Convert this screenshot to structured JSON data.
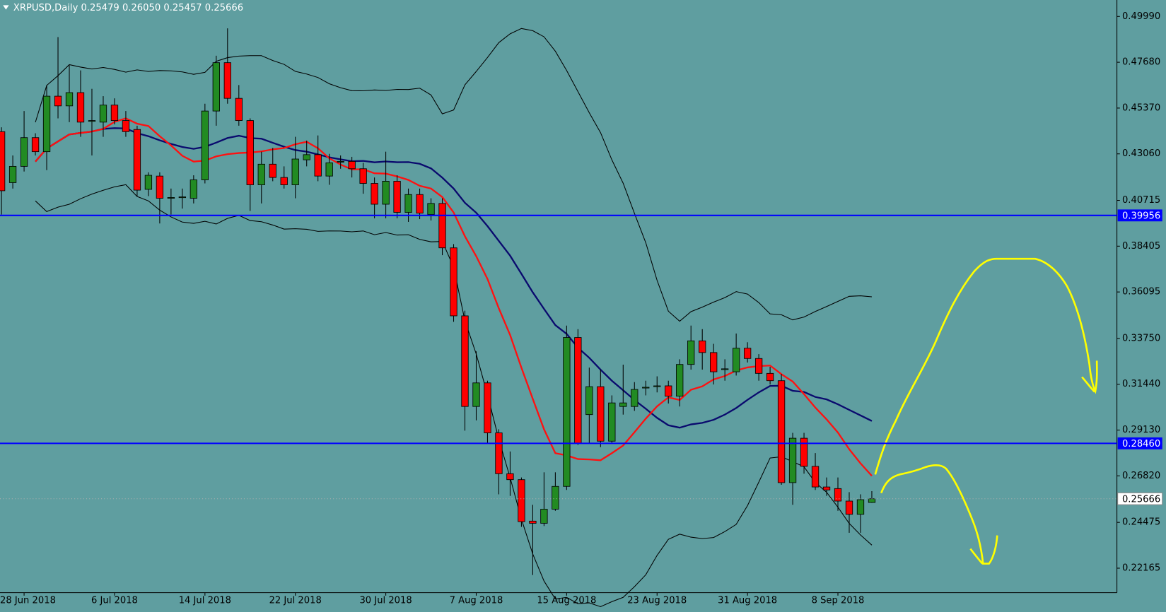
{
  "chart_data": {
    "type": "candlestick",
    "title": "XRPUSD,Daily  0.25479 0.26050 0.25457 0.25666",
    "categories": [
      null,
      null,
      "28 Jun 2018",
      null,
      null,
      null,
      null,
      null,
      null,
      null,
      "6 Jul 2018",
      null,
      null,
      null,
      null,
      null,
      null,
      null,
      "14 Jul 2018",
      null,
      null,
      null,
      null,
      null,
      null,
      null,
      "22 Jul 2018",
      null,
      null,
      null,
      null,
      null,
      null,
      null,
      "30 Jul 2018",
      null,
      null,
      null,
      null,
      null,
      null,
      null,
      "7 Aug 2018",
      null,
      null,
      null,
      null,
      null,
      null,
      null,
      "15 Aug 2018",
      null,
      null,
      null,
      null,
      null,
      null,
      null,
      "23 Aug 2018",
      null,
      null,
      null,
      null,
      null,
      null,
      null,
      "31 Aug 2018",
      null,
      null,
      null,
      null,
      null,
      null,
      null,
      "8 Sep 2018",
      null,
      null,
      null
    ],
    "open": [
      0.4418,
      0.4161,
      0.4243,
      0.4388,
      0.4317,
      0.4597,
      0.4548,
      0.4615,
      0.447,
      0.4466,
      0.4552,
      0.4474,
      0.4429,
      0.4127,
      0.4194,
      0.4082,
      0.4086,
      0.4082,
      0.4175,
      0.4522,
      0.4766,
      0.4586,
      0.4474,
      0.415,
      0.4254,
      0.4187,
      0.415,
      0.4276,
      0.4302,
      0.4194,
      0.4265,
      0.4268,
      0.4231,
      0.4157,
      0.4052,
      0.4168,
      0.4011,
      0.4101,
      0.4,
      0.4056,
      0.3832,
      0.3489,
      0.3032,
      0.3151,
      0.2899,
      0.2693,
      0.2663,
      0.2454,
      0.2443,
      0.2514,
      0.2629,
      0.338,
      0.2991,
      0.3132,
      0.2857,
      0.3032,
      0.3032,
      0.3125,
      0.3132,
      0.3136,
      0.3084,
      0.3244,
      0.3363,
      0.3304,
      0.3218,
      0.3207,
      0.3326,
      0.3274,
      0.3199,
      0.3162,
      0.2648,
      0.2872,
      0.273,
      0.2626,
      0.2618,
      0.2555,
      0.2488,
      0.25479
    ],
    "high": [
      0.444,
      0.4298,
      0.4522,
      0.441,
      0.4653,
      0.4895,
      0.4753,
      0.4727,
      0.4634,
      0.4597,
      0.4586,
      0.4522,
      0.4448,
      0.4213,
      0.4213,
      0.4131,
      0.4131,
      0.4198,
      0.4559,
      0.4801,
      0.4939,
      0.4653,
      0.4485,
      0.4317,
      0.4336,
      0.4243,
      0.4392,
      0.4373,
      0.4399,
      0.4306,
      0.4298,
      0.4291,
      0.4261,
      0.4187,
      0.4317,
      0.4198,
      0.4131,
      0.4131,
      0.4082,
      0.4082,
      0.3851,
      0.3515,
      0.331,
      0.3162,
      0.2917,
      0.2805,
      0.2674,
      0.2536,
      0.27,
      0.27,
      0.344,
      0.3422,
      0.3228,
      0.3218,
      0.3088,
      0.3243,
      0.3155,
      0.3162,
      0.3184,
      0.3162,
      0.327,
      0.344,
      0.3422,
      0.3348,
      0.327,
      0.34,
      0.3356,
      0.3296,
      0.3232,
      0.3196,
      0.2899,
      0.2899,
      0.2797,
      0.2674,
      0.2674,
      0.26,
      0.2589,
      0.2605
    ],
    "low": [
      0.4,
      0.4131,
      0.4217,
      0.4298,
      0.4224,
      0.4485,
      0.4466,
      0.4392,
      0.4298,
      0.4392,
      0.4455,
      0.4392,
      0.4093,
      0.4093,
      0.3955,
      0.4,
      0.403,
      0.4056,
      0.4157,
      0.4448,
      0.4559,
      0.4448,
      0.4018,
      0.4056,
      0.4168,
      0.4131,
      0.4082,
      0.4243,
      0.4168,
      0.415,
      0.4231,
      0.4187,
      0.4105,
      0.3981,
      0.3981,
      0.3981,
      0.3963,
      0.3977,
      0.397,
      0.3795,
      0.3459,
      0.291,
      0.2962,
      0.2846,
      0.2589,
      0.2581,
      0.2425,
      0.2182,
      0.2429,
      0.2506,
      0.2611,
      0.2838,
      0.2846,
      0.2827,
      0.2846,
      0.2991,
      0.301,
      0.3088,
      0.3103,
      0.3047,
      0.3032,
      0.3218,
      0.3218,
      0.3143,
      0.3162,
      0.3188,
      0.3254,
      0.3162,
      0.3143,
      0.2637,
      0.2536,
      0.2693,
      0.2611,
      0.2581,
      0.2506,
      0.2395,
      0.2395,
      0.25457
    ],
    "close": [
      0.412,
      0.4243,
      0.4388,
      0.4317,
      0.4597,
      0.4548,
      0.4615,
      0.4466,
      0.4474,
      0.4552,
      0.4474,
      0.4418,
      0.4123,
      0.4198,
      0.4082,
      0.4086,
      0.4089,
      0.4175,
      0.4522,
      0.4766,
      0.4586,
      0.4474,
      0.415,
      0.4254,
      0.4187,
      0.415,
      0.428,
      0.4302,
      0.4194,
      0.4261,
      0.4268,
      0.4231,
      0.4157,
      0.4052,
      0.4168,
      0.4011,
      0.4101,
      0.4007,
      0.4056,
      0.3832,
      0.3489,
      0.3032,
      0.3151,
      0.2899,
      0.2693,
      0.2663,
      0.2451,
      0.2443,
      0.2514,
      0.2629,
      0.338,
      0.2846,
      0.3132,
      0.2857,
      0.305,
      0.305,
      0.3118,
      0.3129,
      0.3136,
      0.3084,
      0.3244,
      0.3363,
      0.3304,
      0.3207,
      0.3222,
      0.3326,
      0.3274,
      0.3199,
      0.3162,
      0.2648,
      0.2872,
      0.273,
      0.2626,
      0.2611,
      0.2555,
      0.2488,
      0.2562,
      0.25666
    ],
    "up_color": "#228b22",
    "down_color": "#ff0000",
    "ylim": [
      0.2093,
      0.5082
    ],
    "yticks": [
      {
        "value": 0.4999,
        "label": "0.49990"
      },
      {
        "value": 0.4768,
        "label": "0.47680"
      },
      {
        "value": 0.4537,
        "label": "0.45370"
      },
      {
        "value": 0.4306,
        "label": "0.43060"
      },
      0.40715,
      0.38405,
      0.36095,
      {
        "value": 0.3375,
        "label": "0.33750"
      },
      {
        "value": 0.3144,
        "label": "0.31440"
      },
      {
        "value": 0.2913,
        "label": "0.29130"
      },
      {
        "value": 0.2682,
        "label": "0.26820"
      },
      0.24475,
      0.22165
    ],
    "hlines": [
      0.39956,
      {
        "value": 0.2846,
        "label": "0.28460"
      }
    ],
    "hline_color": "#0000ff",
    "last_price": 0.25666,
    "grid": false
  }
}
